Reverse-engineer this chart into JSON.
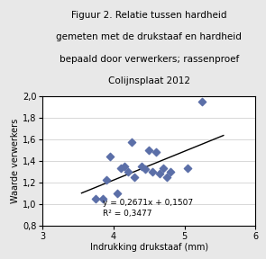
{
  "title_lines": [
    "Figuur 2. Relatie tussen hardheid",
    "gemeten met de drukstaaf en hardheid",
    "bepaald door verwerkers; rassenproef",
    "Colijnsplaat 2012"
  ],
  "xlabel": "Indrukking drukstaaf (mm)",
  "ylabel": "Waarde verwerkers",
  "xlim": [
    3,
    6
  ],
  "ylim": [
    0.8,
    2.0
  ],
  "xticks": [
    3,
    4,
    5,
    6
  ],
  "yticks": [
    0.8,
    1.0,
    1.2,
    1.4,
    1.6,
    1.8,
    2.0
  ],
  "scatter_x": [
    3.75,
    3.85,
    3.9,
    3.95,
    4.05,
    4.1,
    4.15,
    4.2,
    4.25,
    4.3,
    4.4,
    4.45,
    4.5,
    4.55,
    4.6,
    4.65,
    4.7,
    4.75,
    4.8,
    5.05,
    5.25
  ],
  "scatter_y": [
    1.05,
    1.05,
    1.22,
    1.44,
    1.1,
    1.33,
    1.35,
    1.3,
    1.57,
    1.25,
    1.35,
    1.32,
    1.5,
    1.3,
    1.48,
    1.28,
    1.33,
    1.25,
    1.3,
    1.33,
    1.95
  ],
  "scatter_color": "#5b6fa8",
  "scatter_marker": "D",
  "scatter_size": 18,
  "trendline_slope": 0.2671,
  "trendline_intercept": 0.1507,
  "trendline_x_start": 3.55,
  "trendline_x_end": 5.55,
  "equation_text": "y = 0,2671x + 0,1507",
  "r2_text": "R² = 0,3477",
  "line_color": "black",
  "bg_color": "#e8e8e8",
  "plot_bg_color": "#ffffff",
  "grid_color": "#c8c8c8",
  "title_fontsize": 7.5,
  "label_fontsize": 7,
  "tick_fontsize": 7,
  "annot_fontsize": 6.5
}
